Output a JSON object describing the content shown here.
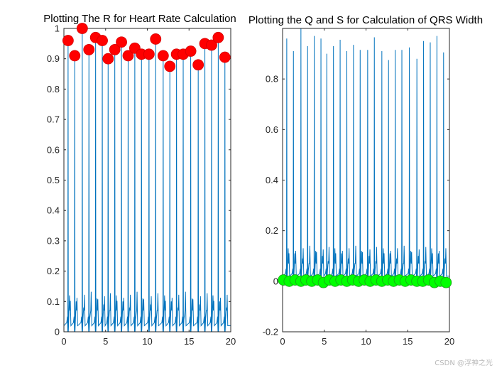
{
  "watermark": "CSDN @浮神之光",
  "colors": {
    "signal": "#0072bd",
    "r_marker": "#ff0000",
    "qs_marker": "#00ff00",
    "axis": "#262626",
    "background": "#ffffff"
  },
  "chart_data": [
    {
      "type": "line",
      "title": "Plotting The R for Heart Rate Calculation",
      "xlim": [
        0,
        20
      ],
      "ylim": [
        0,
        1
      ],
      "xticks": [
        0,
        5,
        10,
        15,
        20
      ],
      "yticks": [
        0,
        0.1,
        0.2,
        0.3,
        0.4,
        0.5,
        0.6,
        0.7,
        0.8,
        0.9,
        1
      ],
      "xtick_labels": [
        "0",
        "5",
        "10",
        "15",
        "20"
      ],
      "ytick_labels": [
        "0",
        "0.1",
        "0.2",
        "0.3",
        "0.4",
        "0.5",
        "0.6",
        "0.7",
        "0.8",
        "0.9",
        "1"
      ],
      "grid": false,
      "series": [
        {
          "name": "ECG signal",
          "style": "line",
          "baseline": 0.02,
          "t_wave": 0.12,
          "beat_times": [
            0.5,
            1.3,
            2.2,
            3.0,
            3.8,
            4.6,
            5.3,
            6.1,
            6.9,
            7.7,
            8.5,
            9.3,
            10.2,
            11.0,
            11.9,
            12.7,
            13.5,
            14.3,
            15.2,
            16.1,
            16.9,
            17.7,
            18.5,
            19.3
          ],
          "peak_values": [
            0.96,
            0.91,
            1.0,
            0.93,
            0.97,
            0.96,
            0.9,
            0.93,
            0.955,
            0.91,
            0.935,
            0.915,
            0.915,
            0.965,
            0.91,
            0.875,
            0.915,
            0.915,
            0.925,
            0.88,
            0.95,
            0.945,
            0.97,
            0.905
          ]
        },
        {
          "name": "R peaks",
          "style": "markers",
          "x": [
            0.5,
            1.3,
            2.2,
            3.0,
            3.8,
            4.6,
            5.3,
            6.1,
            6.9,
            7.7,
            8.5,
            9.3,
            10.2,
            11.0,
            11.9,
            12.7,
            13.5,
            14.3,
            15.2,
            16.1,
            16.9,
            17.7,
            18.5,
            19.3
          ],
          "y": [
            0.96,
            0.91,
            1.0,
            0.93,
            0.97,
            0.96,
            0.9,
            0.93,
            0.955,
            0.91,
            0.935,
            0.915,
            0.915,
            0.965,
            0.91,
            0.875,
            0.915,
            0.915,
            0.925,
            0.88,
            0.95,
            0.945,
            0.97,
            0.905
          ]
        }
      ]
    },
    {
      "type": "line",
      "title": "Plotting the Q and S for Calculation of QRS Width",
      "xlim": [
        0,
        20
      ],
      "ylim": [
        -0.2,
        1
      ],
      "xticks": [
        0,
        5,
        10,
        15,
        20
      ],
      "yticks": [
        -0.2,
        0,
        0.2,
        0.4,
        0.6,
        0.8
      ],
      "xtick_labels": [
        "0",
        "5",
        "10",
        "15",
        "20"
      ],
      "ytick_labels": [
        "-0.2",
        "0",
        "0.2",
        "0.4",
        "0.6",
        "0.8"
      ],
      "grid": false,
      "series": [
        {
          "name": "ECG signal",
          "style": "line",
          "baseline": 0.02,
          "t_wave": 0.13,
          "beat_times": [
            0.5,
            1.3,
            2.2,
            3.0,
            3.8,
            4.6,
            5.3,
            6.1,
            6.9,
            7.7,
            8.5,
            9.3,
            10.2,
            11.0,
            11.9,
            12.7,
            13.5,
            14.3,
            15.2,
            16.1,
            16.9,
            17.7,
            18.5,
            19.3
          ],
          "peak_values": [
            0.96,
            0.91,
            1.0,
            0.93,
            0.97,
            0.96,
            0.9,
            0.93,
            0.955,
            0.91,
            0.935,
            0.915,
            0.915,
            0.965,
            0.91,
            0.875,
            0.915,
            0.915,
            0.925,
            0.88,
            0.95,
            0.945,
            0.97,
            0.905
          ]
        },
        {
          "name": "Q and S points",
          "style": "markers",
          "x": [
            0.1,
            0.8,
            1.5,
            2.2,
            2.8,
            3.5,
            4.2,
            4.9,
            5.6,
            6.3,
            7.0,
            7.7,
            8.4,
            9.1,
            9.8,
            10.5,
            11.2,
            11.9,
            12.6,
            13.3,
            14.0,
            14.7,
            15.4,
            16.1,
            16.8,
            17.5,
            18.2,
            18.9,
            19.6
          ],
          "y": [
            0.005,
            0.0,
            0.005,
            0.0,
            0.005,
            0.0,
            0.005,
            -0.005,
            0.005,
            0.0,
            0.005,
            0.0,
            0.005,
            0.0,
            0.005,
            0.0,
            0.005,
            0.0,
            0.005,
            0.0,
            0.005,
            0.0,
            0.005,
            0.0,
            0.0,
            0.005,
            -0.005,
            0.0,
            -0.005
          ]
        }
      ]
    }
  ]
}
